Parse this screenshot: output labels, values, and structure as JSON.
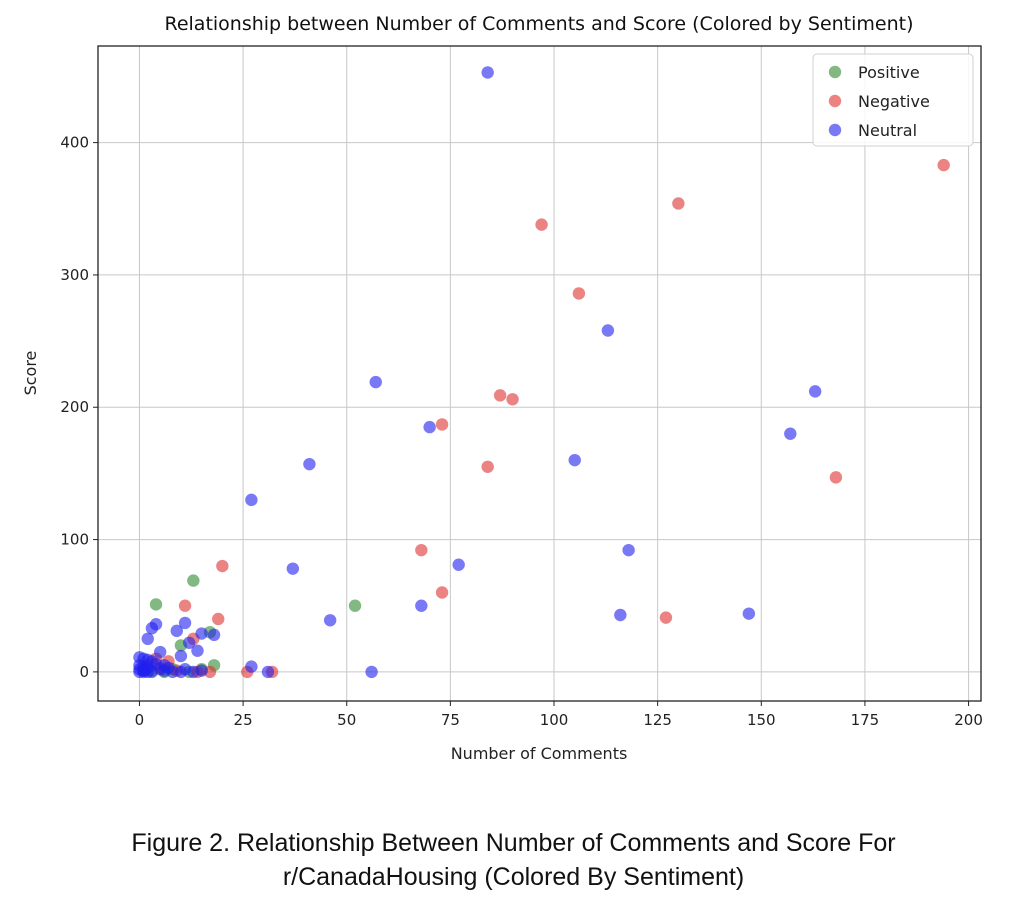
{
  "chart_data": {
    "type": "scatter",
    "title": "Relationship between Number of Comments and Score (Colored by Sentiment)",
    "xlabel": "Number of Comments",
    "ylabel": "Score",
    "xlim": [
      -10,
      203
    ],
    "ylim": [
      -22,
      473
    ],
    "xticks": [
      0,
      25,
      50,
      75,
      100,
      125,
      150,
      175,
      200
    ],
    "yticks": [
      0,
      100,
      200,
      300,
      400
    ],
    "grid": true,
    "legend_position": "top-right",
    "series": [
      {
        "name": "Positive",
        "color": "#2e8b2e",
        "points": [
          [
            4,
            51
          ],
          [
            13,
            69
          ],
          [
            10,
            20
          ],
          [
            17,
            30
          ],
          [
            18,
            5
          ],
          [
            52,
            50
          ],
          [
            6,
            0
          ],
          [
            8,
            2
          ],
          [
            3,
            1
          ],
          [
            15,
            2
          ],
          [
            12,
            0
          ],
          [
            2,
            3
          ],
          [
            1,
            1
          ]
        ]
      },
      {
        "name": "Negative",
        "color": "#e03030",
        "points": [
          [
            194,
            383
          ],
          [
            130,
            354
          ],
          [
            97,
            338
          ],
          [
            106,
            286
          ],
          [
            87,
            209
          ],
          [
            90,
            206
          ],
          [
            73,
            187
          ],
          [
            84,
            155
          ],
          [
            168,
            147
          ],
          [
            68,
            92
          ],
          [
            20,
            80
          ],
          [
            73,
            60
          ],
          [
            11,
            50
          ],
          [
            127,
            41
          ],
          [
            19,
            40
          ],
          [
            26,
            0
          ],
          [
            32,
            0
          ],
          [
            17,
            0
          ],
          [
            13,
            25
          ],
          [
            4,
            10
          ],
          [
            7,
            8
          ],
          [
            2,
            5
          ],
          [
            5,
            3
          ],
          [
            1,
            2
          ],
          [
            9,
            1
          ],
          [
            14,
            0
          ]
        ]
      },
      {
        "name": "Neutral",
        "color": "#2020f0",
        "points": [
          [
            84,
            453
          ],
          [
            113,
            258
          ],
          [
            57,
            219
          ],
          [
            163,
            212
          ],
          [
            70,
            185
          ],
          [
            157,
            180
          ],
          [
            105,
            160
          ],
          [
            41,
            157
          ],
          [
            27,
            130
          ],
          [
            118,
            92
          ],
          [
            77,
            81
          ],
          [
            37,
            78
          ],
          [
            68,
            50
          ],
          [
            116,
            43
          ],
          [
            147,
            44
          ],
          [
            46,
            39
          ],
          [
            56,
            0
          ],
          [
            27,
            4
          ],
          [
            31,
            0
          ],
          [
            4,
            36
          ],
          [
            3,
            33
          ],
          [
            11,
            37
          ],
          [
            9,
            31
          ],
          [
            15,
            29
          ],
          [
            18,
            28
          ],
          [
            2,
            25
          ],
          [
            12,
            22
          ],
          [
            14,
            16
          ],
          [
            5,
            15
          ],
          [
            10,
            12
          ],
          [
            0,
            11
          ],
          [
            1,
            10
          ],
          [
            2,
            9
          ],
          [
            3,
            8
          ],
          [
            4,
            6
          ],
          [
            0,
            5
          ],
          [
            1,
            4
          ],
          [
            2,
            3
          ],
          [
            6,
            5
          ],
          [
            7,
            3
          ],
          [
            0,
            2
          ],
          [
            1,
            1
          ],
          [
            2,
            0
          ],
          [
            3,
            0
          ],
          [
            0,
            0
          ],
          [
            1,
            0
          ],
          [
            8,
            0
          ],
          [
            10,
            0
          ],
          [
            13,
            0
          ],
          [
            5,
            2
          ],
          [
            6,
            1
          ],
          [
            11,
            2
          ],
          [
            15,
            1
          ]
        ]
      }
    ]
  },
  "caption": {
    "line1": "Figure 2. Relationship Between Number of Comments and Score For",
    "line2": "r/CanadaHousing (Colored By Sentiment)"
  }
}
